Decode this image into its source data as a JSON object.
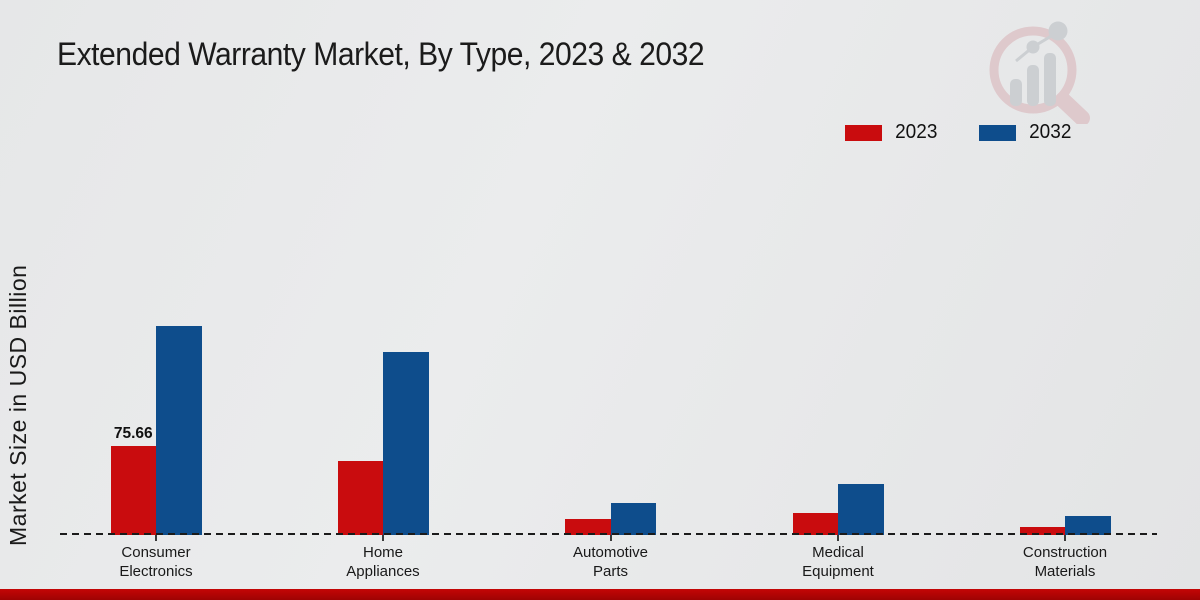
{
  "chart_data": {
    "type": "bar",
    "title": "Extended Warranty Market, By Type, 2023 & 2032",
    "xlabel": "",
    "ylabel": "Market Size in USD Billion",
    "categories": [
      "Consumer Electronics",
      "Home Appliances",
      "Automotive Parts",
      "Medical Equipment",
      "Construction Materials"
    ],
    "series": [
      {
        "name": "2023",
        "color": "#c90c0e",
        "values": [
          75.66,
          62.9,
          13.6,
          18.7,
          6.8
        ]
      },
      {
        "name": "2032",
        "color": "#0e4d8c",
        "values": [
          177.7,
          155.6,
          27.2,
          43.4,
          16.2
        ]
      }
    ],
    "data_labels": [
      {
        "series_index": 0,
        "category_index": 0,
        "text": "75.66"
      }
    ],
    "ylim": [
      0,
      195
    ],
    "grid": false,
    "legend_position": "top-right",
    "baseline_style": "dashed"
  },
  "icons": {
    "watermark": "magnifier-bar-chart-logo"
  },
  "footer": {
    "strip_color": "#b00404"
  }
}
